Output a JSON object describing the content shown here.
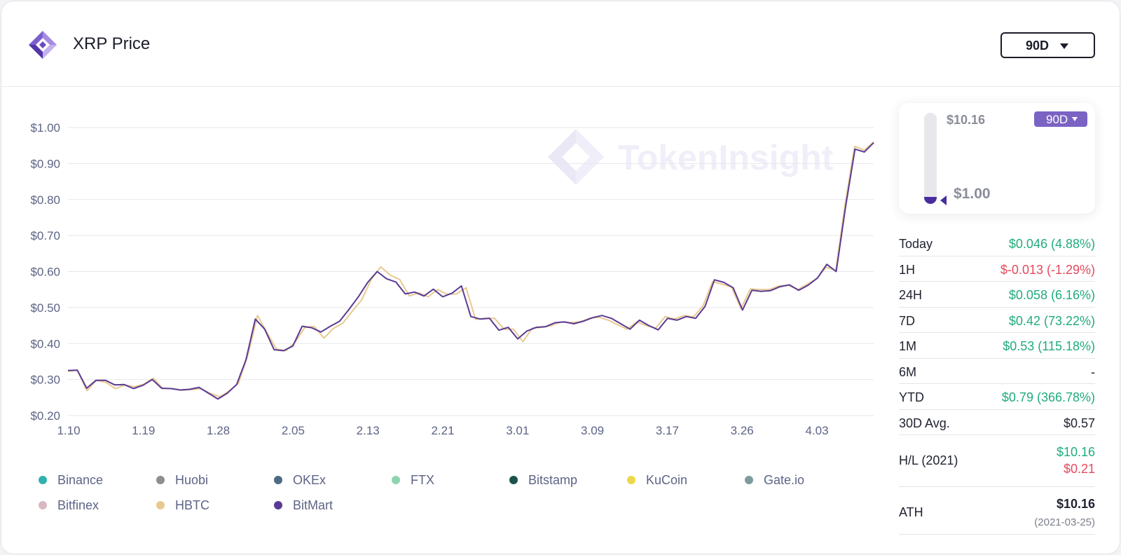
{
  "header": {
    "title": "XRP Price",
    "range_label": "90D"
  },
  "colors": {
    "accent": "#7b63c4",
    "line_primary": "#5a3b94",
    "line_secondary": "#e8c98f",
    "positive": "#1fad7a",
    "negative": "#e4495c"
  },
  "watermark": "TokenInsight",
  "chart_data": {
    "type": "line",
    "title": "",
    "xlabel": "",
    "ylabel": "",
    "ylim": [
      0.2,
      1.0
    ],
    "yticks": [
      0.2,
      0.3,
      0.4,
      0.5,
      0.6,
      0.7,
      0.8,
      0.9,
      1.0
    ],
    "ytick_labels": [
      "$0.20",
      "$0.30",
      "$0.40",
      "$0.50",
      "$0.60",
      "$0.70",
      "$0.80",
      "$0.90",
      "$1.00"
    ],
    "xtick_labels": [
      "1.10",
      "1.19",
      "1.28",
      "2.05",
      "2.13",
      "2.21",
      "3.01",
      "3.09",
      "3.17",
      "3.26",
      "4.03"
    ],
    "grid": true,
    "legend_position": "bottom",
    "series": [
      {
        "name": "Binance",
        "color": "#2fb2ad",
        "values": []
      },
      {
        "name": "Huobi",
        "color": "#8e8e8e",
        "values": []
      },
      {
        "name": "OKEx",
        "color": "#4d6b83",
        "values": []
      },
      {
        "name": "FTX",
        "color": "#8fd4ae",
        "values": []
      },
      {
        "name": "Bitstamp",
        "color": "#19524f",
        "values": []
      },
      {
        "name": "KuCoin",
        "color": "#eed64a",
        "values": []
      },
      {
        "name": "Gate.io",
        "color": "#7f9a9d",
        "values": []
      },
      {
        "name": "Bitfinex",
        "color": "#d9b8c0",
        "values": []
      },
      {
        "name": "HBTC",
        "color": "#e8c98f",
        "values": [
          0.323,
          0.326,
          0.269,
          0.298,
          0.292,
          0.275,
          0.285,
          0.28,
          0.287,
          0.304,
          0.275,
          0.275,
          0.27,
          0.272,
          0.275,
          0.262,
          0.252,
          0.268,
          0.29,
          0.37,
          0.478,
          0.43,
          0.385,
          0.38,
          0.405,
          0.445,
          0.447,
          0.415,
          0.442,
          0.457,
          0.49,
          0.522,
          0.578,
          0.613,
          0.59,
          0.578,
          0.532,
          0.541,
          0.53,
          0.55,
          0.537,
          0.538,
          0.555,
          0.467,
          0.47,
          0.47,
          0.44,
          0.44,
          0.405,
          0.443,
          0.445,
          0.45,
          0.46,
          0.458,
          0.46,
          0.47,
          0.473,
          0.465,
          0.452,
          0.44,
          0.46,
          0.45,
          0.443,
          0.475,
          0.468,
          0.478,
          0.474,
          0.505,
          0.572,
          0.565,
          0.557,
          0.497,
          0.552,
          0.55,
          0.55,
          0.56,
          0.562,
          0.55,
          0.565,
          0.58,
          0.612,
          0.603,
          0.79,
          0.948,
          0.937,
          0.96
        ]
      },
      {
        "name": "BitMart",
        "color": "#5a3b94",
        "values": [
          0.325,
          0.326,
          0.276,
          0.298,
          0.298,
          0.285,
          0.286,
          0.275,
          0.284,
          0.3,
          0.276,
          0.275,
          0.271,
          0.273,
          0.278,
          0.262,
          0.246,
          0.262,
          0.286,
          0.355,
          0.468,
          0.44,
          0.383,
          0.38,
          0.393,
          0.448,
          0.444,
          0.432,
          0.448,
          0.462,
          0.495,
          0.53,
          0.57,
          0.6,
          0.58,
          0.571,
          0.538,
          0.543,
          0.532,
          0.551,
          0.53,
          0.54,
          0.56,
          0.475,
          0.468,
          0.47,
          0.437,
          0.445,
          0.413,
          0.435,
          0.445,
          0.447,
          0.458,
          0.46,
          0.455,
          0.462,
          0.472,
          0.478,
          0.47,
          0.455,
          0.44,
          0.465,
          0.45,
          0.438,
          0.47,
          0.465,
          0.475,
          0.47,
          0.503,
          0.577,
          0.57,
          0.555,
          0.493,
          0.548,
          0.545,
          0.547,
          0.558,
          0.563,
          0.548,
          0.562,
          0.582,
          0.62,
          0.6,
          0.78,
          0.94,
          0.932,
          0.958
        ]
      }
    ]
  },
  "gauge": {
    "high_label": "$10.16",
    "current_label": "$1.00",
    "range_label": "90D",
    "level_fraction": 0.08
  },
  "stats": {
    "rows": [
      {
        "label": "Today",
        "value": "$0.046 (4.88%)",
        "tone": "pos"
      },
      {
        "label": "1H",
        "value": "$-0.013 (-1.29%)",
        "tone": "neg"
      },
      {
        "label": "24H",
        "value": "$0.058 (6.16%)",
        "tone": "pos"
      },
      {
        "label": "7D",
        "value": "$0.42 (73.22%)",
        "tone": "pos"
      },
      {
        "label": "1M",
        "value": "$0.53 (115.18%)",
        "tone": "pos"
      },
      {
        "label": "6M",
        "value": "-",
        "tone": "neu"
      },
      {
        "label": "YTD",
        "value": "$0.79 (366.78%)",
        "tone": "pos"
      },
      {
        "label": "30D Avg.",
        "value": "$0.57",
        "tone": "neu"
      }
    ],
    "hl": {
      "label": "H/L (2021)",
      "high": "$10.16",
      "low": "$0.21"
    },
    "ath": {
      "label": "ATH",
      "value": "$10.16",
      "date": "(2021-03-25)"
    }
  }
}
